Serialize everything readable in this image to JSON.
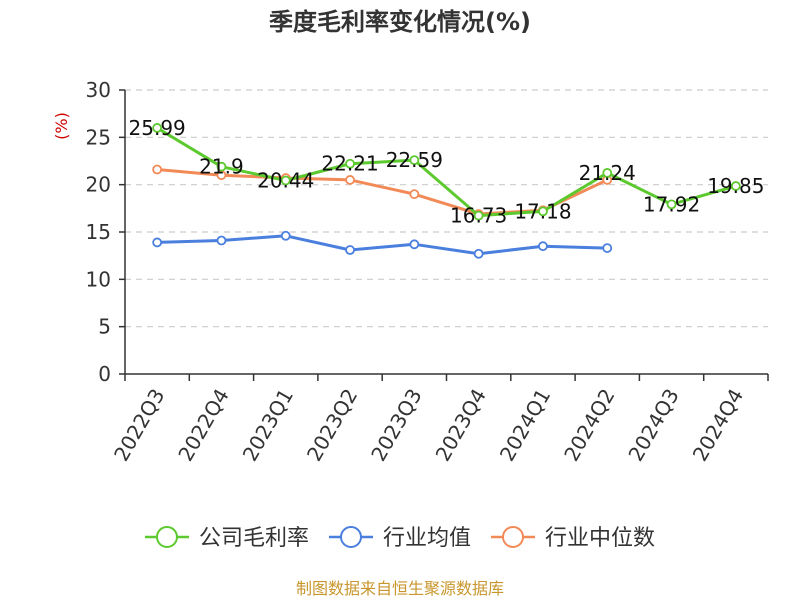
{
  "chart_data": {
    "type": "line",
    "title": "季度毛利率变化情况(%)",
    "unit_label": "(%)",
    "categories": [
      "2022Q3",
      "2022Q4",
      "2023Q1",
      "2023Q2",
      "2023Q3",
      "2023Q4",
      "2024Q1",
      "2024Q2",
      "2024Q3",
      "2024Q4"
    ],
    "ylim": [
      0,
      30
    ],
    "yticks": [
      "0",
      "5",
      "10",
      "15",
      "20",
      "25",
      "30"
    ],
    "grid": true,
    "legend_position": "bottom",
    "series": [
      {
        "name": "公司毛利率",
        "color": "#5cc92e",
        "values": [
          25.99,
          21.9,
          20.44,
          22.21,
          22.59,
          16.73,
          17.18,
          21.24,
          17.92,
          19.85
        ],
        "labels": [
          "25.99",
          "21.9",
          "20.44",
          "22.21",
          "22.59",
          "16.73",
          "17.18",
          "21.24",
          "17.92",
          "19.85"
        ]
      },
      {
        "name": "行业均值",
        "color": "#4a7fde",
        "values": [
          13.9,
          14.1,
          14.6,
          13.1,
          13.7,
          12.7,
          13.5,
          13.3,
          null,
          null
        ]
      },
      {
        "name": "行业中位数",
        "color": "#f28a57",
        "values": [
          21.6,
          21.0,
          20.7,
          20.5,
          19.0,
          16.9,
          17.3,
          20.5,
          null,
          null
        ]
      }
    ]
  },
  "footer": {
    "source": "制图数据来自恒生聚源数据库",
    "source_color": "#c8962c"
  },
  "colors": {
    "axis": "#333333",
    "grid": "#cccccc",
    "unit": "#cc0000"
  }
}
